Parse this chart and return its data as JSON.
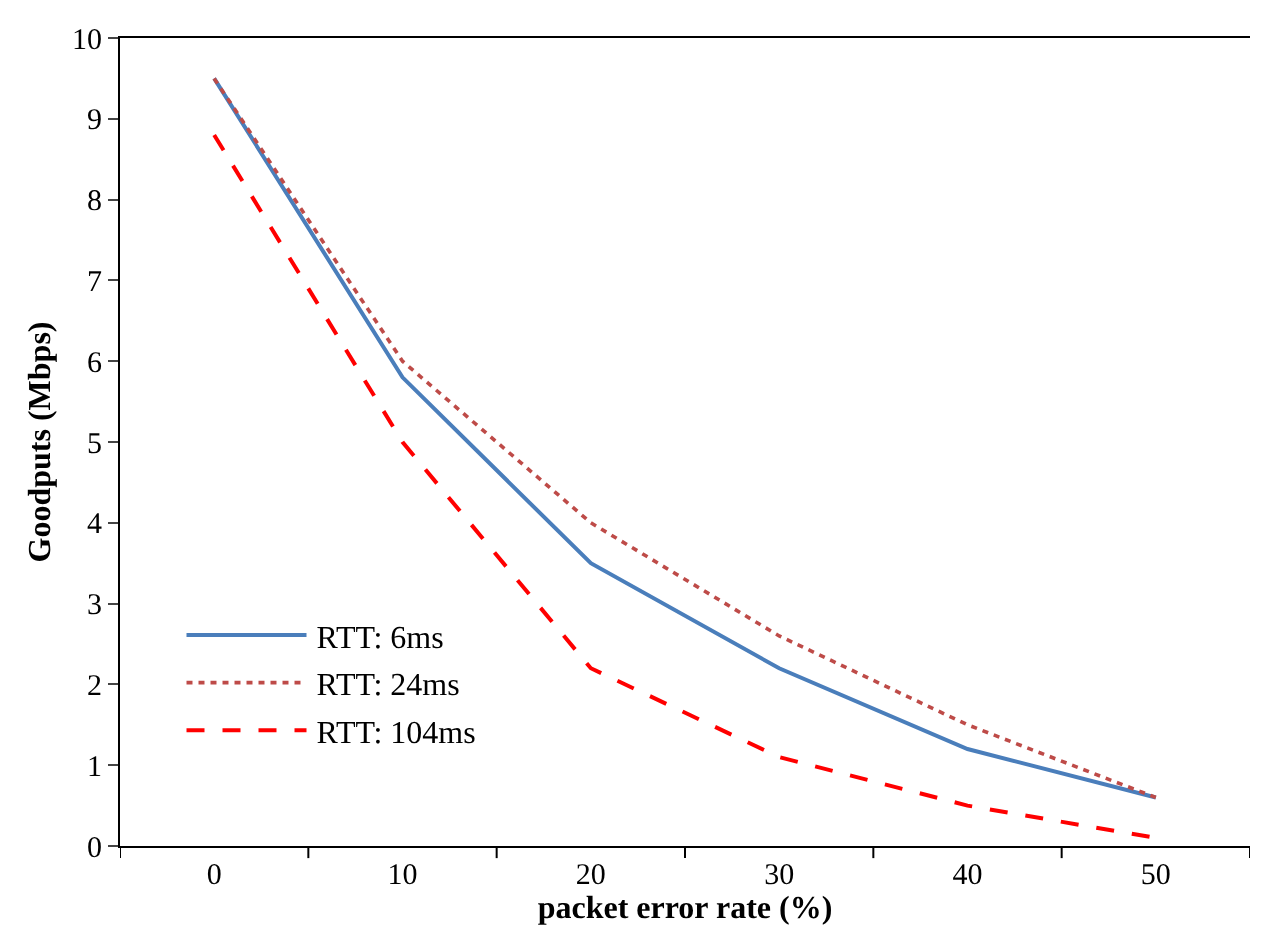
{
  "chart_data": {
    "type": "line",
    "xlabel": "packet error rate (%)",
    "ylabel": "Goodputs (Mbps)",
    "categories": [
      "0",
      "10",
      "20",
      "30",
      "40",
      "50"
    ],
    "series": [
      {
        "name": "RTT: 6ms",
        "color": "#4a7ebb",
        "line_style": "solid",
        "values": [
          9.5,
          5.8,
          3.5,
          2.2,
          1.2,
          0.6
        ]
      },
      {
        "name": "RTT: 24ms",
        "color": "#be4b48",
        "line_style": "dotted",
        "values": [
          9.5,
          6.0,
          4.0,
          2.6,
          1.5,
          0.6
        ]
      },
      {
        "name": "RTT: 104ms",
        "color": "#ff0000",
        "line_style": "dashed",
        "values": [
          8.8,
          5.0,
          2.2,
          1.1,
          0.5,
          0.1
        ]
      }
    ],
    "ylim": [
      0,
      10
    ],
    "yticks": [
      0,
      1,
      2,
      3,
      4,
      5,
      6,
      7,
      8,
      9,
      10
    ],
    "grid": false,
    "legend": "bottom left",
    "marker": "none"
  }
}
